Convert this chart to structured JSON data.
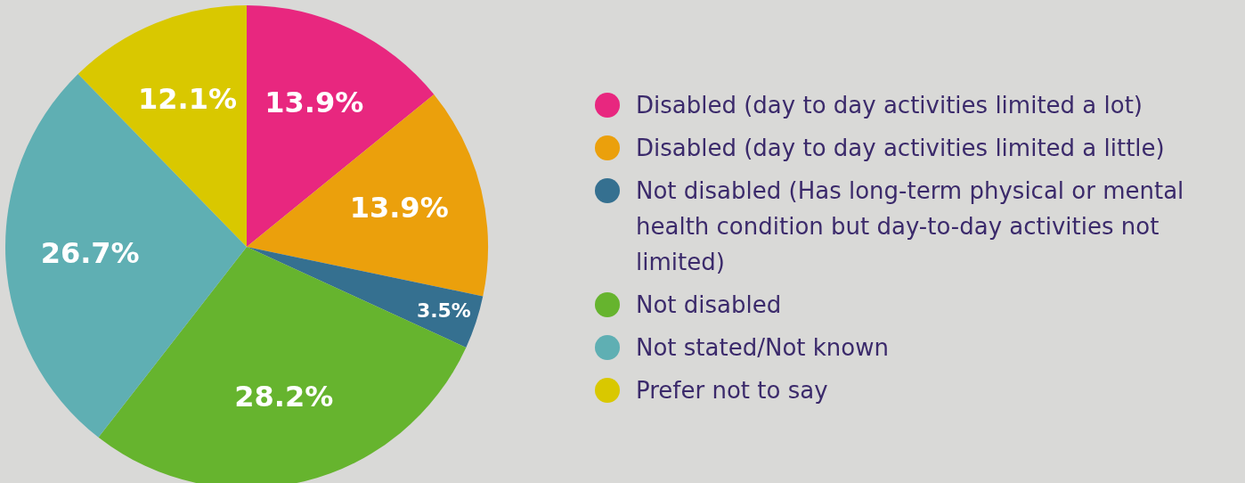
{
  "chart_data": {
    "type": "pie",
    "categories": [
      "Disabled (day to day activities limited a lot)",
      "Disabled (day to day activities limited a little)",
      "Not disabled (Has long-term physical or mental health condition but day-to-day activities not limited)",
      "Not disabled",
      "Not stated/Not known",
      "Prefer not to say"
    ],
    "values": [
      13.9,
      13.9,
      3.5,
      28.2,
      26.7,
      12.1
    ],
    "colors": [
      "#e8277f",
      "#eba00c",
      "#357090",
      "#66b42e",
      "#5fafb3",
      "#d9c800"
    ],
    "value_labels": [
      "13.9%",
      "13.9%",
      "3.5%",
      "28.2%",
      "26.7%",
      "12.1%"
    ],
    "legend": "right"
  }
}
